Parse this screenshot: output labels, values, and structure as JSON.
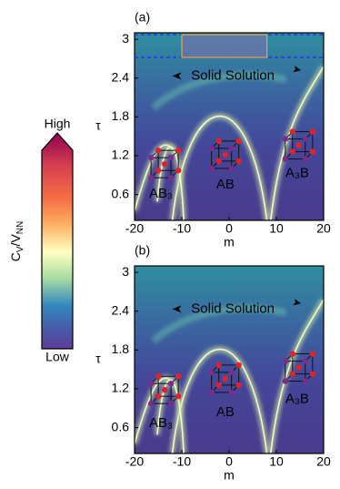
{
  "chart_data": [
    {
      "type": "heatmap",
      "panel_label": "(a)",
      "xlabel": "m",
      "ylabel": "τ",
      "xlim": [
        -20,
        20
      ],
      "ylim": [
        0.2,
        3.1
      ],
      "xticks": [
        -20,
        -10,
        0,
        10,
        20
      ],
      "yticks": [
        0.6,
        1.2,
        1.8,
        2.4,
        3.0
      ],
      "annotations": [
        "Solid Solution",
        "AB₃",
        "AB",
        "A₃B"
      ],
      "highlight": {
        "xrange": [
          -10,
          8
        ],
        "yrange": [
          2.72,
          3.07
        ]
      }
    },
    {
      "type": "heatmap",
      "panel_label": "(b)",
      "xlabel": "m",
      "ylabel": "τ",
      "xlim": [
        -20,
        20
      ],
      "ylim": [
        0.2,
        3.1
      ],
      "xticks": [
        -20,
        -10,
        0,
        10,
        20
      ],
      "yticks": [
        0.6,
        1.2,
        1.8,
        2.4,
        3.0
      ],
      "annotations": [
        "Solid Solution",
        "AB₃",
        "AB",
        "A₃B"
      ]
    }
  ],
  "colorbar": {
    "label_main": "C",
    "label_sub": "V",
    "label_main2": "/V",
    "label_sub2": "NN",
    "high": "High",
    "low": "Low"
  }
}
